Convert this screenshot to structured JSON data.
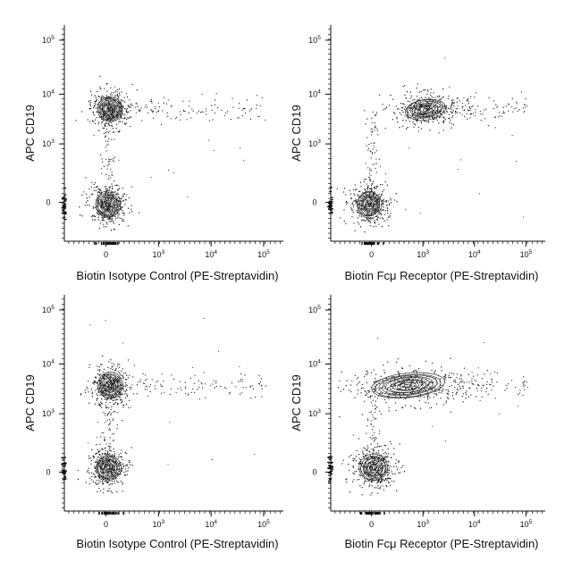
{
  "colors": {
    "ink": "#111111",
    "contour": "#333333",
    "background": "#ffffff"
  },
  "chart_data": [
    {
      "type": "scatter",
      "subtype": "flow-cytometry contour plot with outliers",
      "xlabel": "Biotin Isotype Control (PE-Streptavidin)",
      "ylabel": "APC  CD19",
      "x_scale": "biexponential",
      "y_scale": "biexponential",
      "x_ticks": [
        "0",
        "10^3",
        "10^4",
        "10^5"
      ],
      "y_ticks": [
        "0",
        "10^3",
        "10^4",
        "10^5"
      ],
      "grid": false,
      "legend": "none",
      "populations": [
        {
          "x_center": 0,
          "y_center": 5000,
          "spread": "tight contours"
        },
        {
          "x_center": 0,
          "y_center": 0,
          "spread": "tight contours"
        },
        {
          "x_range": [
            100,
            80000
          ],
          "y_center": 5000,
          "spread": "sparse dots"
        }
      ]
    },
    {
      "type": "scatter",
      "subtype": "flow-cytometry contour plot with outliers",
      "xlabel": "Biotin Fcμ Receptor (PE-Streptavidin)",
      "ylabel": "APC  CD19",
      "x_scale": "biexponential",
      "y_scale": "biexponential",
      "x_ticks": [
        "0",
        "10^3",
        "10^4",
        "10^5"
      ],
      "y_ticks": [
        "0",
        "10^3",
        "10^4",
        "10^5"
      ],
      "grid": false,
      "legend": "none",
      "populations": [
        {
          "x_center": 1000,
          "y_center": 5000,
          "spread": "elongated contours"
        },
        {
          "x_center": 0,
          "y_center": 0,
          "spread": "tight contours"
        },
        {
          "x_range": [
            100,
            60000
          ],
          "y_center": 4000,
          "spread": "sparse dots"
        }
      ]
    },
    {
      "type": "scatter",
      "subtype": "flow-cytometry contour plot with outliers",
      "xlabel": "Biotin Isotype Control (PE-Streptavidin)",
      "ylabel": "APC  CD19",
      "x_scale": "biexponential",
      "y_scale": "biexponential",
      "x_ticks": [
        "0",
        "10^3",
        "10^4",
        "10^5"
      ],
      "y_ticks": [
        "0",
        "10^3",
        "10^4",
        "10^5"
      ],
      "grid": false,
      "legend": "none",
      "populations": [
        {
          "x_center": 0,
          "y_center": 3500,
          "spread": "tight contours"
        },
        {
          "x_center": 0,
          "y_center": 0,
          "spread": "tight contours"
        },
        {
          "x_range": [
            100,
            70000
          ],
          "y_center": 3500,
          "spread": "sparse dots"
        }
      ]
    },
    {
      "type": "scatter",
      "subtype": "flow-cytometry contour plot with outliers",
      "xlabel": "Biotin Fcμ Receptor (PE-Streptavidin)",
      "ylabel": "APC  CD19",
      "x_scale": "biexponential",
      "y_scale": "biexponential",
      "x_ticks": [
        "0",
        "10^3",
        "10^4",
        "10^5"
      ],
      "y_ticks": [
        "0",
        "10^3",
        "10^4",
        "10^5"
      ],
      "grid": false,
      "legend": "none",
      "populations": [
        {
          "x_range": [
            0,
            3000
          ],
          "y_center": 3500,
          "spread": "broad elongated contours"
        },
        {
          "x_center": 0,
          "y_center": 0,
          "spread": "tight contours"
        },
        {
          "x_range": [
            100,
            60000
          ],
          "y_center": 3500,
          "spread": "sparse dots"
        }
      ]
    }
  ]
}
